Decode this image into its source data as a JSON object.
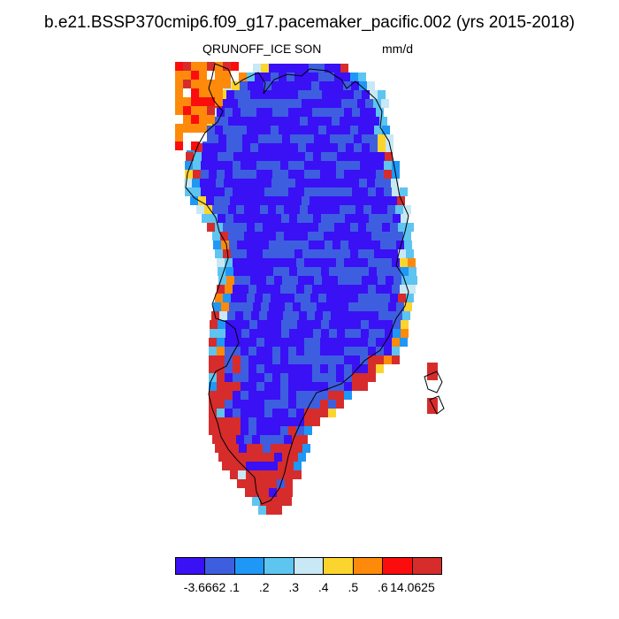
{
  "title": "b.e21.BSSP370cmip6.f09_g17.pacemaker_pacific.002 (yrs 2015-2018)",
  "variable": "QRUNOFF_ICE",
  "season": "SON",
  "units": "mm/d",
  "colorbar": {
    "colors": [
      "#3a10f5",
      "#3e5ee0",
      "#1f97f7",
      "#5ec4f0",
      "#c7e8f4",
      "#fcd42e",
      "#fd8a0a",
      "#fb0d0d",
      "#d62c2c"
    ],
    "labels": [
      "-3.6662",
      ".1",
      ".2",
      ".3",
      ".4",
      ".5",
      ".6",
      "14.0625"
    ]
  }
}
